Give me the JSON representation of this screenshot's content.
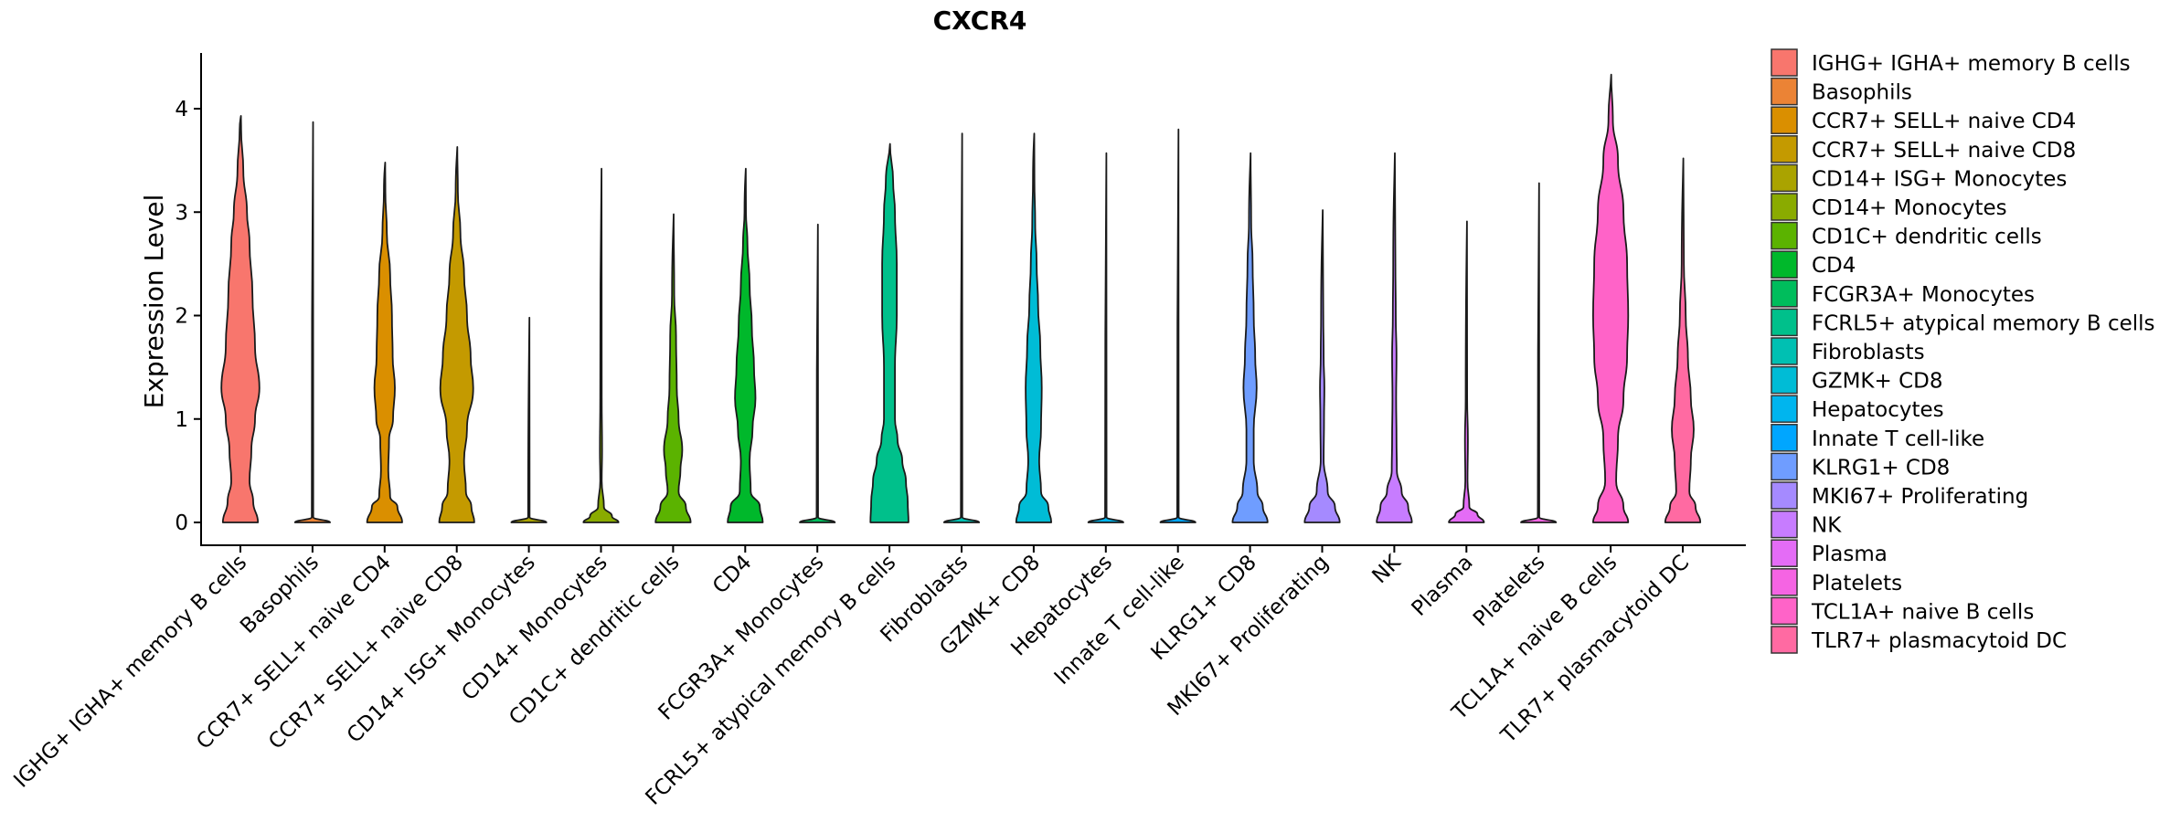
{
  "chart_data": {
    "type": "violin",
    "title": "CXCR4",
    "xlabel": "",
    "ylabel": "Expression Level",
    "ylim": [
      -0.22,
      4.55
    ],
    "yticks": [
      {
        "value": 0,
        "label": "0"
      },
      {
        "value": 1,
        "label": "1"
      },
      {
        "value": 2,
        "label": "2"
      },
      {
        "value": 3,
        "label": "3"
      },
      {
        "value": 4,
        "label": "4"
      }
    ],
    "legend_position": "right",
    "categories": [
      {
        "name": "IGHG+ IGHA+ memory B cells",
        "legend": " IGHG+ IGHA+ memory B cells",
        "color": "#F8766D",
        "max": 3.93,
        "profile": [
          [
            0,
            0.48
          ],
          [
            0.2,
            0.35
          ],
          [
            0.4,
            0.25
          ],
          [
            0.7,
            0.3
          ],
          [
            1.0,
            0.4
          ],
          [
            1.3,
            0.52
          ],
          [
            1.7,
            0.4
          ],
          [
            2.2,
            0.33
          ],
          [
            2.7,
            0.25
          ],
          [
            3.0,
            0.18
          ],
          [
            3.4,
            0.08
          ],
          [
            3.8,
            0.02
          ],
          [
            3.93,
            0
          ]
        ]
      },
      {
        "name": "Basophils",
        "legend": "Basophils",
        "color": "#EB8335",
        "max": 3.87,
        "profile": [
          [
            0,
            0.48
          ],
          [
            0.05,
            0.02
          ],
          [
            3.87,
            0.01
          ]
        ]
      },
      {
        "name": "CCR7+ SELL+ naive CD4",
        "legend": "CCR7+ SELL+ naive CD4",
        "color": "#DA8F00",
        "max": 3.48,
        "profile": [
          [
            0,
            0.48
          ],
          [
            0.15,
            0.35
          ],
          [
            0.25,
            0.15
          ],
          [
            0.5,
            0.1
          ],
          [
            0.8,
            0.12
          ],
          [
            1.0,
            0.23
          ],
          [
            1.3,
            0.28
          ],
          [
            1.6,
            0.22
          ],
          [
            2.0,
            0.2
          ],
          [
            2.4,
            0.15
          ],
          [
            2.8,
            0.06
          ],
          [
            3.2,
            0.02
          ],
          [
            3.48,
            0
          ]
        ]
      },
      {
        "name": "CCR7+ SELL+ naive CD8",
        "legend": "CCR7+ SELL+ naive CD8",
        "color": "#C49A00",
        "max": 3.63,
        "profile": [
          [
            0,
            0.48
          ],
          [
            0.15,
            0.4
          ],
          [
            0.3,
            0.25
          ],
          [
            0.6,
            0.2
          ],
          [
            0.9,
            0.28
          ],
          [
            1.3,
            0.45
          ],
          [
            1.6,
            0.38
          ],
          [
            2.0,
            0.28
          ],
          [
            2.4,
            0.2
          ],
          [
            2.8,
            0.1
          ],
          [
            3.2,
            0.03
          ],
          [
            3.63,
            0
          ]
        ]
      },
      {
        "name": "CD14+ ISG+ Monocytes",
        "legend": "CD14+ ISG+ Monocytes",
        "color": "#AAA300",
        "max": 1.98,
        "profile": [
          [
            0,
            0.48
          ],
          [
            0.05,
            0.02
          ],
          [
            1.98,
            0.01
          ]
        ]
      },
      {
        "name": "CD14+ Monocytes",
        "legend": "CD14+ Monocytes",
        "color": "#8AAB00",
        "max": 3.42,
        "profile": [
          [
            0,
            0.48
          ],
          [
            0.06,
            0.3
          ],
          [
            0.15,
            0.08
          ],
          [
            0.4,
            0.02
          ],
          [
            0.7,
            0.03
          ],
          [
            1.2,
            0.02
          ],
          [
            3.42,
            0
          ]
        ]
      },
      {
        "name": "CD1C+ dendritic cells",
        "legend": "CD1C+ dendritic cells",
        "color": "#5BB300",
        "max": 2.98,
        "profile": [
          [
            0,
            0.48
          ],
          [
            0.15,
            0.35
          ],
          [
            0.3,
            0.15
          ],
          [
            0.5,
            0.2
          ],
          [
            0.7,
            0.25
          ],
          [
            1.0,
            0.15
          ],
          [
            1.3,
            0.1
          ],
          [
            1.8,
            0.08
          ],
          [
            2.2,
            0.03
          ],
          [
            2.98,
            0
          ]
        ]
      },
      {
        "name": "CD4",
        "legend": "CD4",
        "color": "#00B82B",
        "max": 3.42,
        "profile": [
          [
            0,
            0.48
          ],
          [
            0.15,
            0.4
          ],
          [
            0.3,
            0.15
          ],
          [
            0.6,
            0.12
          ],
          [
            0.9,
            0.2
          ],
          [
            1.2,
            0.28
          ],
          [
            1.5,
            0.24
          ],
          [
            1.9,
            0.18
          ],
          [
            2.3,
            0.12
          ],
          [
            2.7,
            0.06
          ],
          [
            3.0,
            0.02
          ],
          [
            3.42,
            0
          ]
        ]
      },
      {
        "name": "FCGR3A+ Monocytes",
        "legend": "FCGR3A+ Monocytes",
        "color": "#00BD5C",
        "max": 2.88,
        "profile": [
          [
            0,
            0.48
          ],
          [
            0.05,
            0.02
          ],
          [
            2.88,
            0.01
          ]
        ]
      },
      {
        "name": "FCRL5+ atypical memory B cells",
        "legend": "FCRL5+ atypical memory B cells",
        "color": "#00C08B",
        "max": 3.66,
        "profile": [
          [
            0,
            0.52
          ],
          [
            0.2,
            0.5
          ],
          [
            0.4,
            0.45
          ],
          [
            0.6,
            0.35
          ],
          [
            0.8,
            0.22
          ],
          [
            1.0,
            0.15
          ],
          [
            1.5,
            0.15
          ],
          [
            2.0,
            0.2
          ],
          [
            2.5,
            0.2
          ],
          [
            3.0,
            0.15
          ],
          [
            3.3,
            0.1
          ],
          [
            3.66,
            0
          ]
        ]
      },
      {
        "name": "Fibroblasts",
        "legend": "Fibroblasts",
        "color": "#00C0B2",
        "max": 3.76,
        "profile": [
          [
            0,
            0.48
          ],
          [
            0.05,
            0.02
          ],
          [
            3.76,
            0.01
          ]
        ]
      },
      {
        "name": "GZMK+ CD8",
        "legend": "GZMK+ CD8",
        "color": "#00BCD6",
        "max": 3.76,
        "profile": [
          [
            0,
            0.48
          ],
          [
            0.15,
            0.4
          ],
          [
            0.3,
            0.2
          ],
          [
            0.6,
            0.15
          ],
          [
            0.9,
            0.2
          ],
          [
            1.3,
            0.22
          ],
          [
            1.7,
            0.18
          ],
          [
            2.1,
            0.12
          ],
          [
            2.5,
            0.08
          ],
          [
            2.9,
            0.04
          ],
          [
            3.3,
            0.02
          ],
          [
            3.76,
            0
          ]
        ]
      },
      {
        "name": "Hepatocytes",
        "legend": "Hepatocytes",
        "color": "#00B5EE",
        "max": 3.57,
        "profile": [
          [
            0,
            0.48
          ],
          [
            0.05,
            0.02
          ],
          [
            3.57,
            0.01
          ]
        ]
      },
      {
        "name": "Innate T cell-like",
        "legend": "Innate T cell-like",
        "color": "#00A6FF",
        "max": 3.8,
        "profile": [
          [
            0,
            0.48
          ],
          [
            0.05,
            0.02
          ],
          [
            3.8,
            0.01
          ]
        ]
      },
      {
        "name": "KLRG1+ CD8",
        "legend": "KLRG1+ CD8",
        "color": "#6F9DFF",
        "max": 3.57,
        "profile": [
          [
            0,
            0.48
          ],
          [
            0.15,
            0.35
          ],
          [
            0.3,
            0.2
          ],
          [
            0.6,
            0.1
          ],
          [
            0.9,
            0.1
          ],
          [
            1.3,
            0.18
          ],
          [
            1.6,
            0.14
          ],
          [
            2.0,
            0.1
          ],
          [
            2.5,
            0.07
          ],
          [
            2.9,
            0.03
          ],
          [
            3.57,
            0
          ]
        ]
      },
      {
        "name": "MKI67+ Proliferating",
        "legend": "MKI67+ Proliferating",
        "color": "#A58AFF",
        "max": 3.02,
        "profile": [
          [
            0,
            0.48
          ],
          [
            0.15,
            0.35
          ],
          [
            0.3,
            0.15
          ],
          [
            0.6,
            0.04
          ],
          [
            1.0,
            0.05
          ],
          [
            1.3,
            0.06
          ],
          [
            1.6,
            0.04
          ],
          [
            2.0,
            0.03
          ],
          [
            3.02,
            0
          ]
        ]
      },
      {
        "name": "NK",
        "legend": "NK",
        "color": "#C77CFF",
        "max": 3.57,
        "profile": [
          [
            0,
            0.48
          ],
          [
            0.15,
            0.38
          ],
          [
            0.3,
            0.2
          ],
          [
            0.5,
            0.07
          ],
          [
            0.8,
            0.06
          ],
          [
            1.2,
            0.05
          ],
          [
            1.6,
            0.06
          ],
          [
            2.0,
            0.04
          ],
          [
            2.5,
            0.03
          ],
          [
            3.57,
            0
          ]
        ]
      },
      {
        "name": "Plasma",
        "legend": "Plasma",
        "color": "#E46CF6",
        "max": 2.91,
        "profile": [
          [
            0,
            0.48
          ],
          [
            0.08,
            0.3
          ],
          [
            0.15,
            0.08
          ],
          [
            0.4,
            0.03
          ],
          [
            0.8,
            0.04
          ],
          [
            1.2,
            0.02
          ],
          [
            2.91,
            0
          ]
        ]
      },
      {
        "name": "Platelets",
        "legend": "Platelets",
        "color": "#F564E3",
        "max": 3.28,
        "profile": [
          [
            0,
            0.48
          ],
          [
            0.05,
            0.02
          ],
          [
            3.28,
            0.01
          ]
        ]
      },
      {
        "name": "TCL1A+ naive B cells",
        "legend": "TCL1A+ naive B cells",
        "color": "#FF63C8",
        "max": 4.33,
        "profile": [
          [
            0,
            0.48
          ],
          [
            0.15,
            0.35
          ],
          [
            0.4,
            0.15
          ],
          [
            0.8,
            0.2
          ],
          [
            1.2,
            0.35
          ],
          [
            1.6,
            0.45
          ],
          [
            2.0,
            0.48
          ],
          [
            2.5,
            0.45
          ],
          [
            3.0,
            0.35
          ],
          [
            3.5,
            0.2
          ],
          [
            3.9,
            0.06
          ],
          [
            4.33,
            0
          ]
        ]
      },
      {
        "name": "TLR7+ plasmacytoid DC",
        "legend": "TLR7+ plasmacytoid DC",
        "color": "#FF6AA2",
        "max": 3.52,
        "profile": [
          [
            0,
            0.48
          ],
          [
            0.15,
            0.35
          ],
          [
            0.3,
            0.18
          ],
          [
            0.6,
            0.22
          ],
          [
            0.9,
            0.3
          ],
          [
            1.2,
            0.22
          ],
          [
            1.6,
            0.14
          ],
          [
            2.0,
            0.08
          ],
          [
            2.5,
            0.03
          ],
          [
            3.52,
            0
          ]
        ]
      }
    ]
  }
}
